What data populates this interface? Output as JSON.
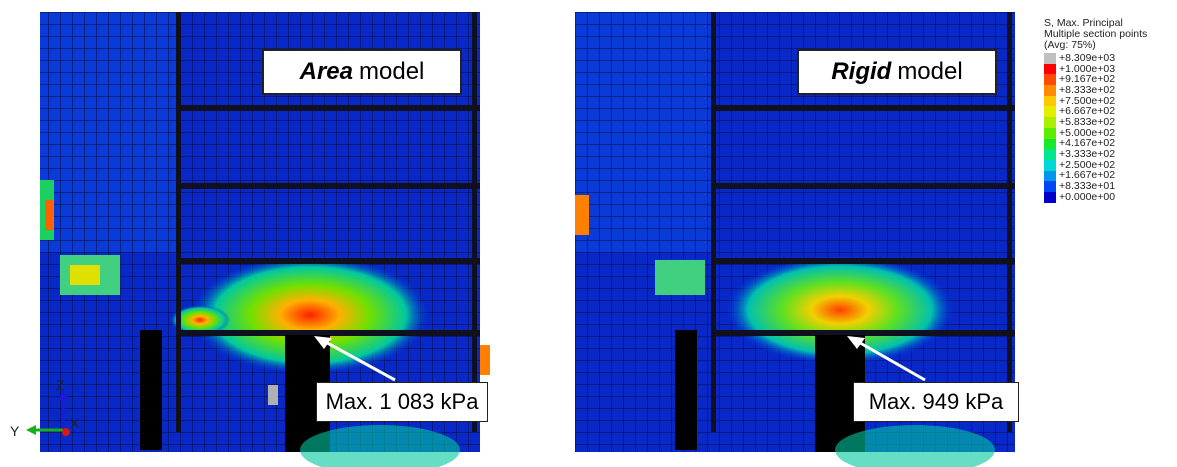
{
  "left_panel": {
    "model_label_emph": "Area",
    "model_label_rest": "model",
    "max_label": "Max. 1 083 kPa"
  },
  "right_panel": {
    "model_label_emph": "Rigid",
    "model_label_rest": "model",
    "max_label": "Max.  949 kPa"
  },
  "legend": {
    "title_line1": "S, Max. Principal",
    "title_line2": "Multiple section points",
    "title_line3": "(Avg: 75%)",
    "entries": [
      {
        "value": "+8.309e+03",
        "color": "#c0c0c0"
      },
      {
        "value": "+1.000e+03",
        "color": "#ff0000"
      },
      {
        "value": "+9.167e+02",
        "color": "#ff4a00"
      },
      {
        "value": "+8.333e+02",
        "color": "#ff8c00"
      },
      {
        "value": "+7.500e+02",
        "color": "#ffc800"
      },
      {
        "value": "+6.667e+02",
        "color": "#e6ee00"
      },
      {
        "value": "+5.833e+02",
        "color": "#a8f000"
      },
      {
        "value": "+5.000e+02",
        "color": "#5aee00"
      },
      {
        "value": "+4.167e+02",
        "color": "#1ae82a"
      },
      {
        "value": "+3.333e+02",
        "color": "#00e68c"
      },
      {
        "value": "+2.500e+02",
        "color": "#00d7d7"
      },
      {
        "value": "+1.667e+02",
        "color": "#0096f0"
      },
      {
        "value": "+8.333e+01",
        "color": "#0046f5"
      },
      {
        "value": "+0.000e+00",
        "color": "#0000c8"
      }
    ]
  },
  "triad": {
    "z_label": "Z",
    "y_label": "Y",
    "x_label": "X",
    "z_color": "#1a1ad8",
    "y_color": "#18b018",
    "x_color": "#d81818"
  }
}
